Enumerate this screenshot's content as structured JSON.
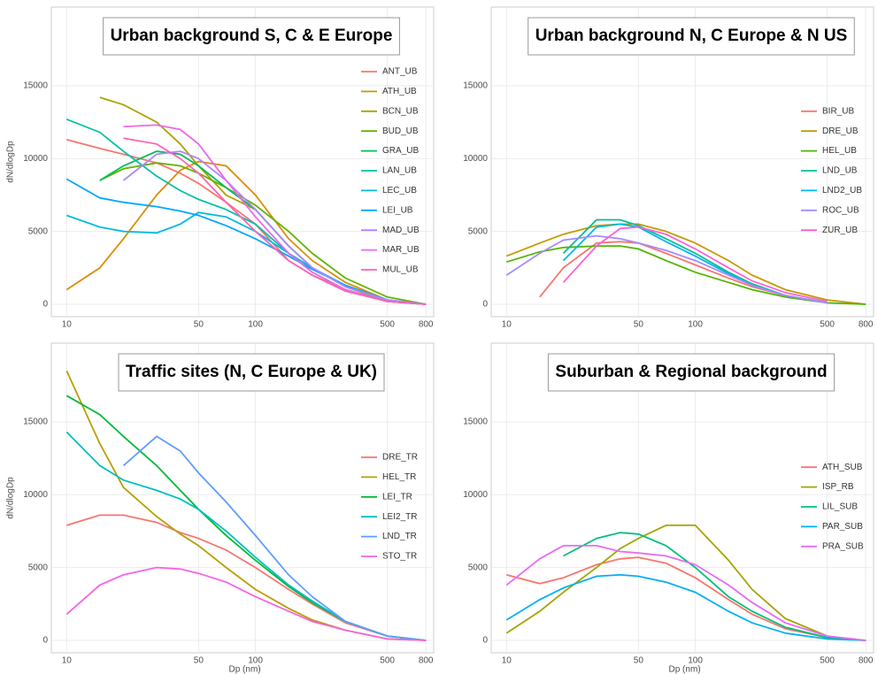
{
  "chart_data": [
    {
      "type": "line",
      "title": "Urban background S, C & E Europe",
      "y_label": "dN/dlogDp",
      "legend": "right",
      "grid": true,
      "x": [
        10,
        15,
        20,
        30,
        40,
        50,
        70,
        100,
        150,
        200,
        300,
        500,
        800
      ],
      "xlim": [
        8.3,
        880
      ],
      "xticks": [
        10,
        50,
        100,
        500,
        800
      ],
      "ylim": [
        -850,
        20400
      ],
      "yticks": [
        0,
        5000,
        10000,
        15000
      ],
      "series": [
        {
          "name": "ANT_UB",
          "color": "#F8766D",
          "values": [
            11300,
            10700,
            10300,
            9700,
            9000,
            8300,
            7000,
            5500,
            3000,
            2000,
            1000,
            200,
            0
          ]
        },
        {
          "name": "ATH_UB",
          "color": "#DB8E00",
          "values": [
            1000,
            2500,
            4500,
            7500,
            9200,
            9800,
            9500,
            7500,
            4500,
            3000,
            1500,
            300,
            0
          ]
        },
        {
          "name": "BCN_UB",
          "color": "#AEA200",
          "values": [
            null,
            14200,
            13700,
            12500,
            11000,
            9500,
            7500,
            6500,
            4000,
            2500,
            1200,
            200,
            0
          ]
        },
        {
          "name": "BUD_UB",
          "color": "#64B200",
          "values": [
            null,
            8500,
            9300,
            9700,
            9500,
            9000,
            8000,
            6800,
            5000,
            3500,
            1800,
            500,
            0
          ]
        },
        {
          "name": "GRA_UB",
          "color": "#00BD5C",
          "values": [
            null,
            8500,
            9500,
            10500,
            10300,
            9500,
            8000,
            6500,
            4000,
            2500,
            1200,
            300,
            0
          ]
        },
        {
          "name": "LAN_UB",
          "color": "#00C1A7",
          "values": [
            12700,
            11800,
            10500,
            8800,
            7800,
            7200,
            6500,
            5500,
            3500,
            2200,
            1000,
            200,
            0
          ]
        },
        {
          "name": "LEC_UB",
          "color": "#00BADE",
          "values": [
            6100,
            5300,
            5000,
            4900,
            5500,
            6300,
            6000,
            5000,
            3500,
            2500,
            1300,
            300,
            0
          ]
        },
        {
          "name": "LEI_UB",
          "color": "#00A6FF",
          "values": [
            8600,
            7300,
            7000,
            6700,
            6400,
            6100,
            5400,
            4500,
            3300,
            2400,
            1300,
            300,
            0
          ]
        },
        {
          "name": "MAD_UB",
          "color": "#B385FF",
          "values": [
            null,
            null,
            8500,
            10300,
            10500,
            10000,
            8500,
            6500,
            4000,
            2500,
            1200,
            300,
            0
          ]
        },
        {
          "name": "MAR_UB",
          "color": "#EF67EB",
          "values": [
            null,
            null,
            12200,
            12300,
            12000,
            11000,
            8500,
            6000,
            3500,
            2200,
            1000,
            200,
            0
          ]
        },
        {
          "name": "MUL_UB",
          "color": "#FF63B6",
          "values": [
            null,
            null,
            11400,
            11000,
            10000,
            9000,
            7000,
            5000,
            3000,
            2000,
            900,
            200,
            0
          ]
        }
      ]
    },
    {
      "type": "line",
      "title": "Urban background N, C Europe & N US",
      "legend": "right",
      "grid": true,
      "x": [
        10,
        15,
        20,
        30,
        40,
        50,
        70,
        100,
        150,
        200,
        300,
        500,
        800
      ],
      "xlim": [
        8.3,
        880
      ],
      "xticks": [
        10,
        50,
        100,
        500,
        800
      ],
      "ylim": [
        -850,
        20400
      ],
      "yticks": [
        0,
        5000,
        10000,
        15000
      ],
      "series": [
        {
          "name": "BIR_UB",
          "color": "#F8766D",
          "values": [
            null,
            500,
            2500,
            4200,
            4300,
            4200,
            3500,
            2700,
            1800,
            1200,
            600,
            100,
            null
          ]
        },
        {
          "name": "DRE_UB",
          "color": "#C49A00",
          "values": [
            3300,
            4200,
            4800,
            5400,
            5500,
            5500,
            5000,
            4200,
            3000,
            2000,
            1000,
            300,
            0
          ]
        },
        {
          "name": "HEL_UB",
          "color": "#53B400",
          "values": [
            2900,
            3600,
            3900,
            4000,
            4000,
            3800,
            3000,
            2200,
            1500,
            1000,
            500,
            100,
            0
          ]
        },
        {
          "name": "LND_UB",
          "color": "#00C094",
          "values": [
            null,
            null,
            3500,
            5800,
            5800,
            5400,
            4500,
            3500,
            2200,
            1400,
            600,
            100,
            null
          ]
        },
        {
          "name": "LND2_UB",
          "color": "#00B6EB",
          "values": [
            null,
            null,
            3000,
            5300,
            5500,
            5300,
            4300,
            3300,
            2100,
            1300,
            600,
            100,
            null
          ]
        },
        {
          "name": "ROC_UB",
          "color": "#A58AFF",
          "values": [
            2000,
            3500,
            4400,
            4700,
            4500,
            4200,
            3700,
            3000,
            2000,
            1300,
            600,
            100,
            null
          ]
        },
        {
          "name": "ZUR_UB",
          "color": "#FB61D7",
          "values": [
            null,
            null,
            1500,
            4000,
            5200,
            5300,
            4800,
            3800,
            2500,
            1600,
            800,
            200,
            null
          ]
        }
      ]
    },
    {
      "type": "line",
      "title": "Traffic sites (N, C Europe & UK)",
      "y_label": "dN/dlogDp",
      "x_label": "Dp (nm)",
      "legend": "right",
      "grid": true,
      "x": [
        10,
        15,
        20,
        30,
        40,
        50,
        70,
        100,
        150,
        200,
        300,
        500,
        800
      ],
      "xlim": [
        8.3,
        880
      ],
      "xticks": [
        10,
        50,
        100,
        500,
        800
      ],
      "ylim": [
        -850,
        20400
      ],
      "yticks": [
        0,
        5000,
        10000,
        15000
      ],
      "series": [
        {
          "name": "DRE_TR",
          "color": "#F8766D",
          "values": [
            7900,
            8600,
            8600,
            8100,
            7400,
            7000,
            6200,
            5000,
            3500,
            2500,
            1200,
            300,
            0
          ]
        },
        {
          "name": "HEL_TR",
          "color": "#B79F00",
          "values": [
            18500,
            13500,
            10500,
            8500,
            7300,
            6500,
            5000,
            3500,
            2200,
            1400,
            700,
            100,
            0
          ]
        },
        {
          "name": "LEI_TR",
          "color": "#00BA38",
          "values": [
            16800,
            15500,
            14000,
            12000,
            10300,
            9000,
            7200,
            5500,
            3700,
            2600,
            1300,
            300,
            0
          ]
        },
        {
          "name": "LEI2_TR",
          "color": "#00BFC4",
          "values": [
            14300,
            12000,
            11000,
            10300,
            9700,
            9000,
            7500,
            5700,
            3800,
            2700,
            1300,
            300,
            0
          ]
        },
        {
          "name": "LND_TR",
          "color": "#619CFF",
          "values": [
            null,
            null,
            12000,
            14000,
            13000,
            11500,
            9500,
            7200,
            4500,
            3000,
            1300,
            300,
            0
          ]
        },
        {
          "name": "STO_TR",
          "color": "#F564E3",
          "values": [
            1800,
            3800,
            4500,
            5000,
            4900,
            4600,
            4000,
            3000,
            2000,
            1300,
            700,
            100,
            0
          ]
        }
      ]
    },
    {
      "type": "line",
      "title": "Suburban & Regional background",
      "x_label": "Dp (nm)",
      "legend": "right",
      "grid": true,
      "x": [
        10,
        15,
        20,
        30,
        40,
        50,
        70,
        100,
        150,
        200,
        300,
        500,
        800
      ],
      "xlim": [
        8.3,
        880
      ],
      "xticks": [
        10,
        50,
        100,
        500,
        800
      ],
      "ylim": [
        -850,
        20400
      ],
      "yticks": [
        0,
        5000,
        10000,
        15000
      ],
      "series": [
        {
          "name": "ATH_SUB",
          "color": "#F8766D",
          "values": [
            4500,
            3900,
            4300,
            5200,
            5600,
            5700,
            5300,
            4300,
            2800,
            1800,
            800,
            200,
            0
          ]
        },
        {
          "name": "ISP_RB",
          "color": "#A3A500",
          "values": [
            500,
            2000,
            3300,
            5000,
            6300,
            7000,
            7900,
            7900,
            5500,
            3500,
            1500,
            300,
            0
          ]
        },
        {
          "name": "LIL_SUB",
          "color": "#00BF7D",
          "values": [
            null,
            null,
            5800,
            7000,
            7400,
            7300,
            6500,
            5000,
            3000,
            2000,
            900,
            200,
            0
          ]
        },
        {
          "name": "PAR_SUB",
          "color": "#00B0F6",
          "values": [
            1400,
            2800,
            3600,
            4400,
            4500,
            4400,
            4000,
            3300,
            2000,
            1200,
            500,
            100,
            0
          ]
        },
        {
          "name": "PRA_SUB",
          "color": "#E76BF3",
          "values": [
            3800,
            5600,
            6500,
            6500,
            6100,
            6000,
            5800,
            5200,
            3800,
            2600,
            1200,
            300,
            0
          ]
        }
      ]
    }
  ]
}
